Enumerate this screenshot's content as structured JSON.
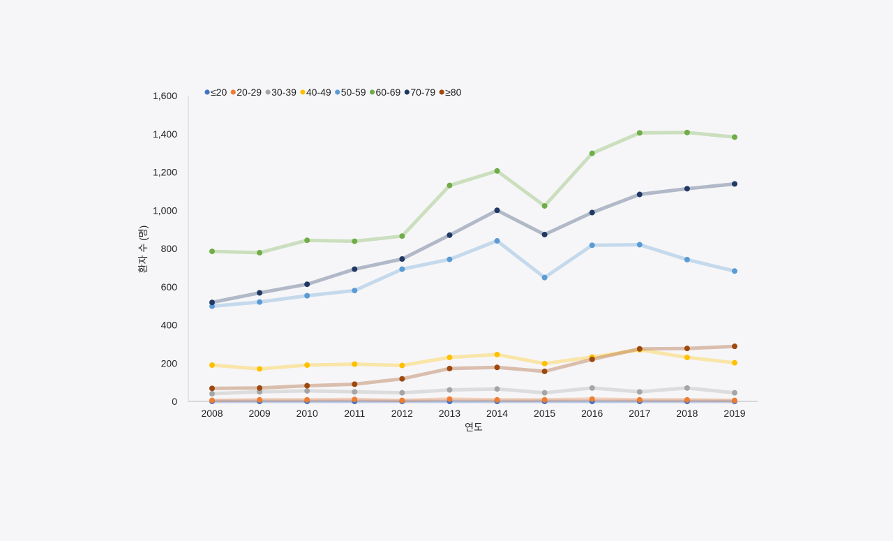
{
  "chart_data": {
    "type": "line",
    "title": "",
    "xlabel": "연도",
    "ylabel": "환자 수 (명)",
    "ylim": [
      0,
      1600
    ],
    "yticks": [
      "0",
      "200",
      "400",
      "600",
      "800",
      "1,000",
      "1,200",
      "1,400",
      "1,600"
    ],
    "ytick_values": [
      0,
      200,
      400,
      600,
      800,
      1000,
      1200,
      1400,
      1600
    ],
    "grid": false,
    "legend_position": "top-left",
    "categories": [
      "2008",
      "2009",
      "2010",
      "2011",
      "2012",
      "2013",
      "2014",
      "2015",
      "2016",
      "2017",
      "2018",
      "2019"
    ],
    "series": [
      {
        "name": "≤20",
        "color": "#4472c4",
        "values": [
          0,
          0,
          0,
          0,
          0,
          0,
          0,
          0,
          0,
          0,
          0,
          0
        ]
      },
      {
        "name": "20-29",
        "color": "#ed7d31",
        "values": [
          5,
          8,
          8,
          10,
          5,
          12,
          8,
          8,
          12,
          8,
          8,
          5
        ]
      },
      {
        "name": "30-39",
        "color": "#a5a5a5",
        "values": [
          40,
          50,
          55,
          50,
          45,
          60,
          65,
          45,
          70,
          50,
          70,
          45
        ]
      },
      {
        "name": "40-49",
        "color": "#ffc000",
        "values": [
          190,
          170,
          190,
          195,
          188,
          230,
          245,
          198,
          232,
          270,
          230,
          202
        ]
      },
      {
        "name": "50-59",
        "color": "#5b9bd5",
        "values": [
          498,
          520,
          553,
          580,
          692,
          743,
          840,
          648,
          817,
          820,
          742,
          682
        ]
      },
      {
        "name": "60-69",
        "color": "#70ad47",
        "values": [
          785,
          778,
          843,
          838,
          865,
          1130,
          1206,
          1023,
          1298,
          1405,
          1407,
          1383
        ]
      },
      {
        "name": "70-79",
        "color": "#203864",
        "values": [
          518,
          568,
          613,
          692,
          745,
          870,
          1000,
          873,
          988,
          1083,
          1113,
          1138
        ]
      },
      {
        "name": "≥80",
        "color": "#9e480e",
        "values": [
          68,
          70,
          82,
          90,
          118,
          172,
          178,
          157,
          220,
          275,
          277,
          288
        ]
      }
    ]
  }
}
